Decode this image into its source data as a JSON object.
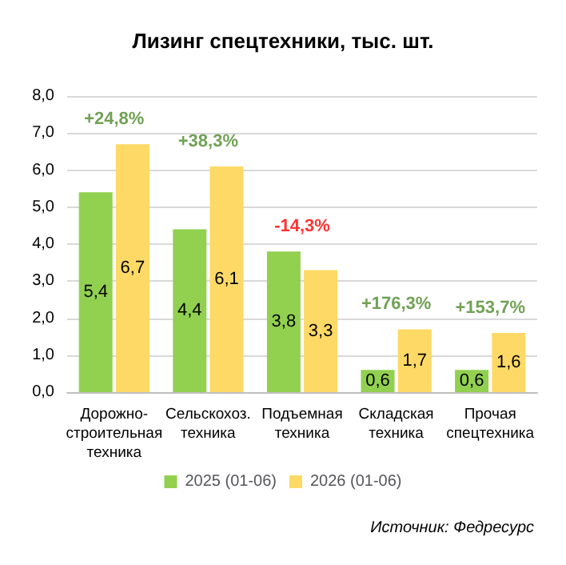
{
  "chart_data": {
    "type": "bar",
    "title": "Лизинг спецтехники, тыс. шт.",
    "categories": [
      "Дорожно-\nстроительная\nтехника",
      "Сельскохоз.\nтехника",
      "Подъемная\nтехника",
      "Складская\nтехника",
      "Прочая\nспецтехника"
    ],
    "series": [
      {
        "name": "2025 (01-06)",
        "color": "#92d050",
        "values": [
          5.4,
          4.4,
          3.8,
          0.6,
          0.6
        ],
        "value_labels": [
          "5,4",
          "4,4",
          "3,8",
          "0,6",
          "0,6"
        ]
      },
      {
        "name": "2026 (01-06)",
        "color": "#ffd966",
        "values": [
          6.7,
          6.1,
          3.3,
          1.7,
          1.6
        ],
        "value_labels": [
          "6,7",
          "6,1",
          "3,3",
          "1,7",
          "1,6"
        ]
      }
    ],
    "ylim": [
      0,
      8
    ],
    "yticks": [
      {
        "value": 0,
        "label": "0,0"
      },
      {
        "value": 1,
        "label": "1,0"
      },
      {
        "value": 2,
        "label": "2,0"
      },
      {
        "value": 3,
        "label": "3,0"
      },
      {
        "value": 4,
        "label": "4,0"
      },
      {
        "value": 5,
        "label": "5,0"
      },
      {
        "value": 6,
        "label": "6,0"
      },
      {
        "value": 7,
        "label": "7,0"
      },
      {
        "value": 8,
        "label": "8,0"
      }
    ],
    "grid": "y",
    "legend": "bottom",
    "annotations": [
      "+24,8%",
      "+38,3%",
      "-14,3%",
      "+176,3%",
      "+153,7%",
      "Источник: Федресурс"
    ]
  }
}
